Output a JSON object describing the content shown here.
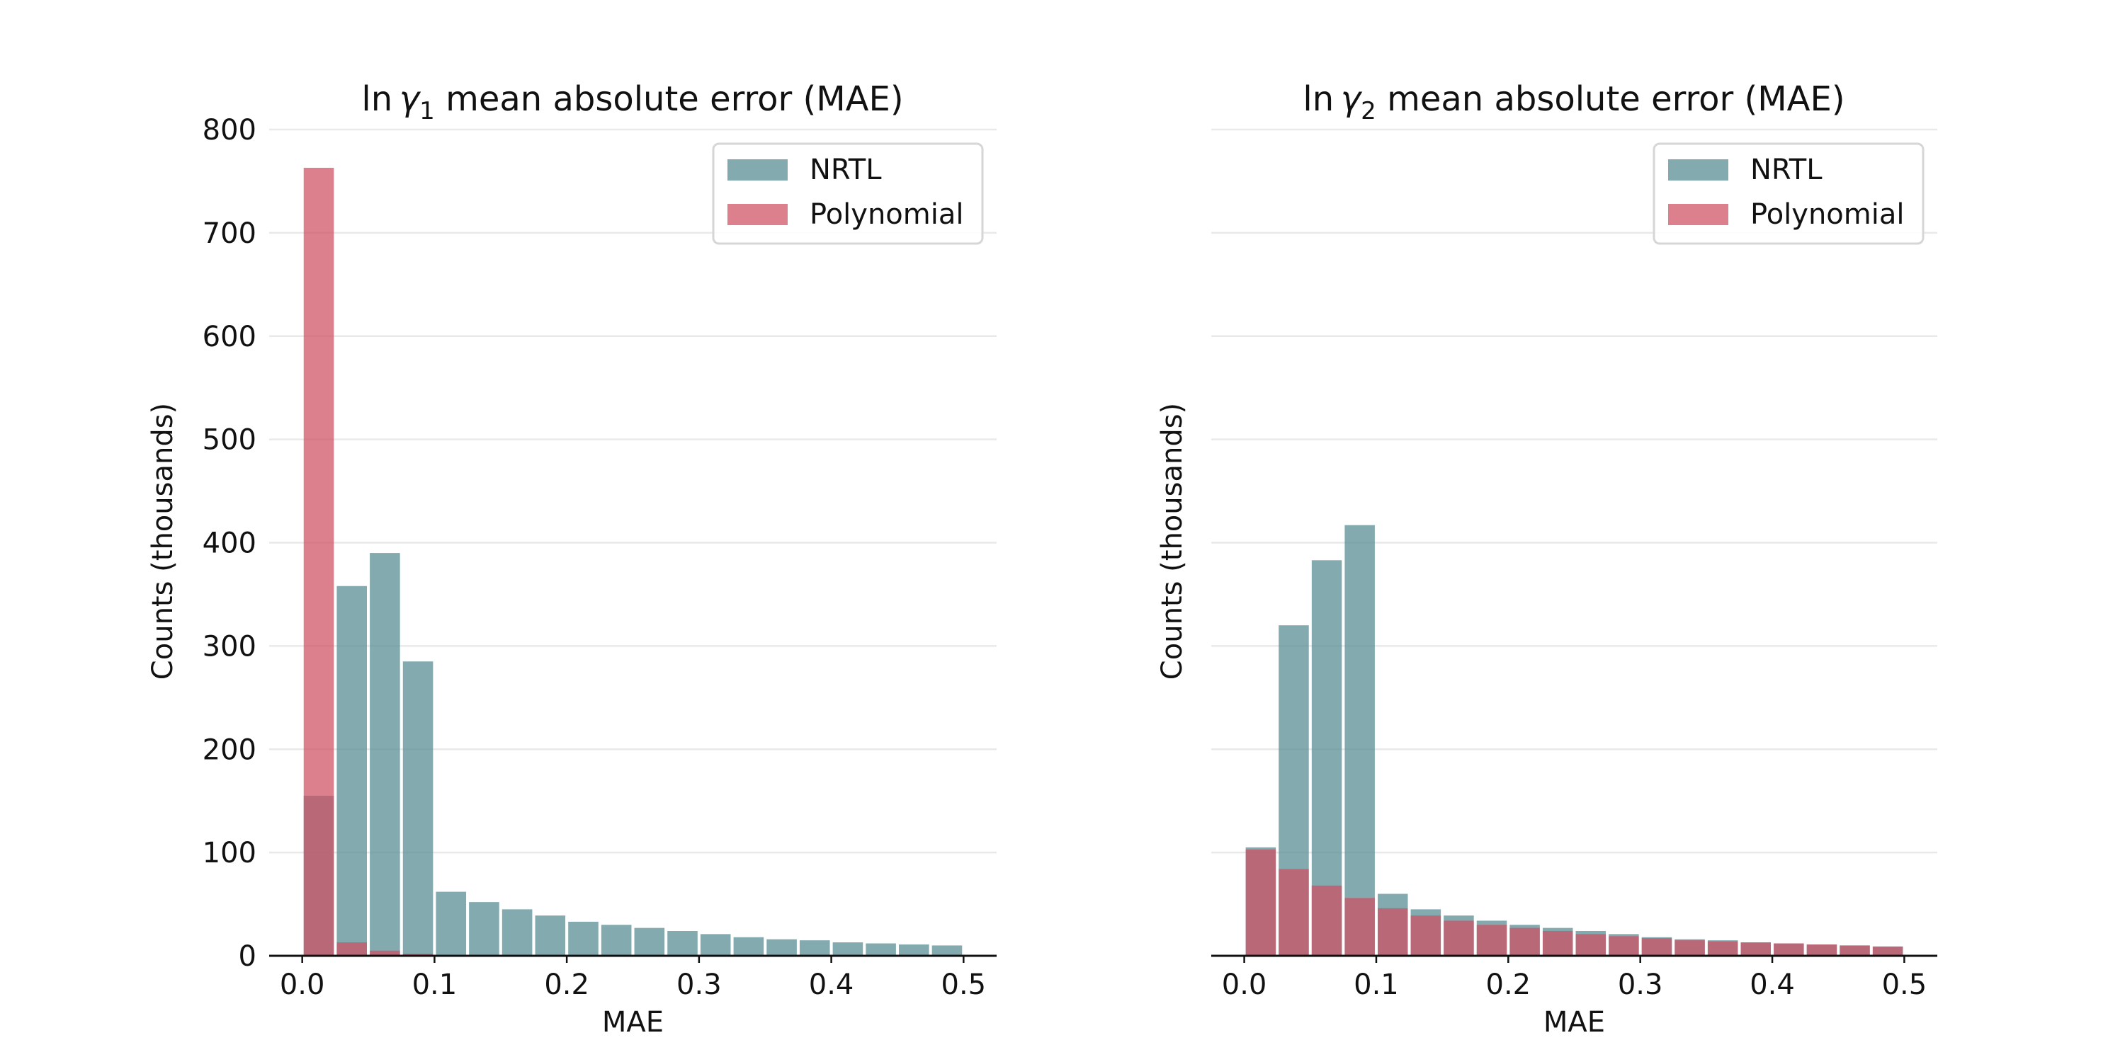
{
  "colors": {
    "nrtl": "#5f9299",
    "polynomial": "#cf4f63",
    "grid": "#e9e9e9",
    "axis": "#111111"
  },
  "chart_data": [
    {
      "type": "bar",
      "title_prefix": "ln",
      "title_var": "γ",
      "title_sub": "1",
      "title_suffix": "mean absolute error (MAE)",
      "xlabel": "MAE",
      "ylabel": "Counts (thousands)",
      "xlim": [
        -0.025,
        0.525
      ],
      "ylim": [
        0,
        800
      ],
      "xticks": [
        0.0,
        0.1,
        0.2,
        0.3,
        0.4,
        0.5
      ],
      "xtick_labels": [
        "0.0",
        "0.1",
        "0.2",
        "0.3",
        "0.4",
        "0.5"
      ],
      "yticks": [
        0,
        100,
        200,
        300,
        400,
        500,
        600,
        700,
        800
      ],
      "ytick_labels": [
        "0",
        "100",
        "200",
        "300",
        "400",
        "500",
        "600",
        "700",
        "800"
      ],
      "show_yticks": true,
      "grid": true,
      "legend_position": "top-right",
      "bin_width": 0.025,
      "series": [
        {
          "name": "NRTL",
          "bin_start": [
            0.0,
            0.025,
            0.05,
            0.075,
            0.1,
            0.125,
            0.15,
            0.175,
            0.2,
            0.225,
            0.25,
            0.275,
            0.3,
            0.325,
            0.35,
            0.375,
            0.4,
            0.425,
            0.45,
            0.475
          ],
          "values": [
            155,
            358,
            390,
            285,
            62,
            52,
            45,
            39,
            33,
            30,
            27,
            24,
            21,
            18,
            16,
            15,
            13,
            12,
            11,
            10
          ]
        },
        {
          "name": "Polynomial",
          "bin_start": [
            0.0,
            0.025,
            0.05,
            0.075
          ],
          "values": [
            763,
            13,
            5,
            2
          ]
        }
      ]
    },
    {
      "type": "bar",
      "title_prefix": "ln",
      "title_var": "γ",
      "title_sub": "2",
      "title_suffix": "mean absolute error (MAE)",
      "xlabel": "MAE",
      "ylabel": "Counts (thousands)",
      "xlim": [
        -0.025,
        0.525
      ],
      "ylim": [
        0,
        800
      ],
      "xticks": [
        0.0,
        0.1,
        0.2,
        0.3,
        0.4,
        0.5
      ],
      "xtick_labels": [
        "0.0",
        "0.1",
        "0.2",
        "0.3",
        "0.4",
        "0.5"
      ],
      "yticks": [
        0,
        100,
        200,
        300,
        400,
        500,
        600,
        700,
        800
      ],
      "ytick_labels": [
        "0",
        "100",
        "200",
        "300",
        "400",
        "500",
        "600",
        "700",
        "800"
      ],
      "show_yticks": false,
      "grid": true,
      "legend_position": "top-right",
      "bin_width": 0.025,
      "series": [
        {
          "name": "NRTL",
          "bin_start": [
            0.0,
            0.025,
            0.05,
            0.075,
            0.1,
            0.125,
            0.15,
            0.175,
            0.2,
            0.225,
            0.25,
            0.275,
            0.3,
            0.325,
            0.35,
            0.375,
            0.4,
            0.425,
            0.45,
            0.475
          ],
          "values": [
            105,
            320,
            383,
            417,
            60,
            45,
            39,
            34,
            30,
            27,
            24,
            21,
            18,
            16,
            15,
            13,
            12,
            11,
            10,
            9
          ]
        },
        {
          "name": "Polynomial",
          "bin_start": [
            0.0,
            0.025,
            0.05,
            0.075,
            0.1,
            0.125,
            0.15,
            0.175,
            0.2,
            0.225,
            0.25,
            0.275,
            0.3,
            0.325,
            0.35,
            0.375,
            0.4,
            0.425,
            0.45,
            0.475
          ],
          "values": [
            103,
            84,
            68,
            56,
            46,
            39,
            34,
            30,
            27,
            24,
            21,
            19,
            17,
            15,
            14,
            13,
            12,
            11,
            10,
            9
          ]
        }
      ]
    }
  ]
}
